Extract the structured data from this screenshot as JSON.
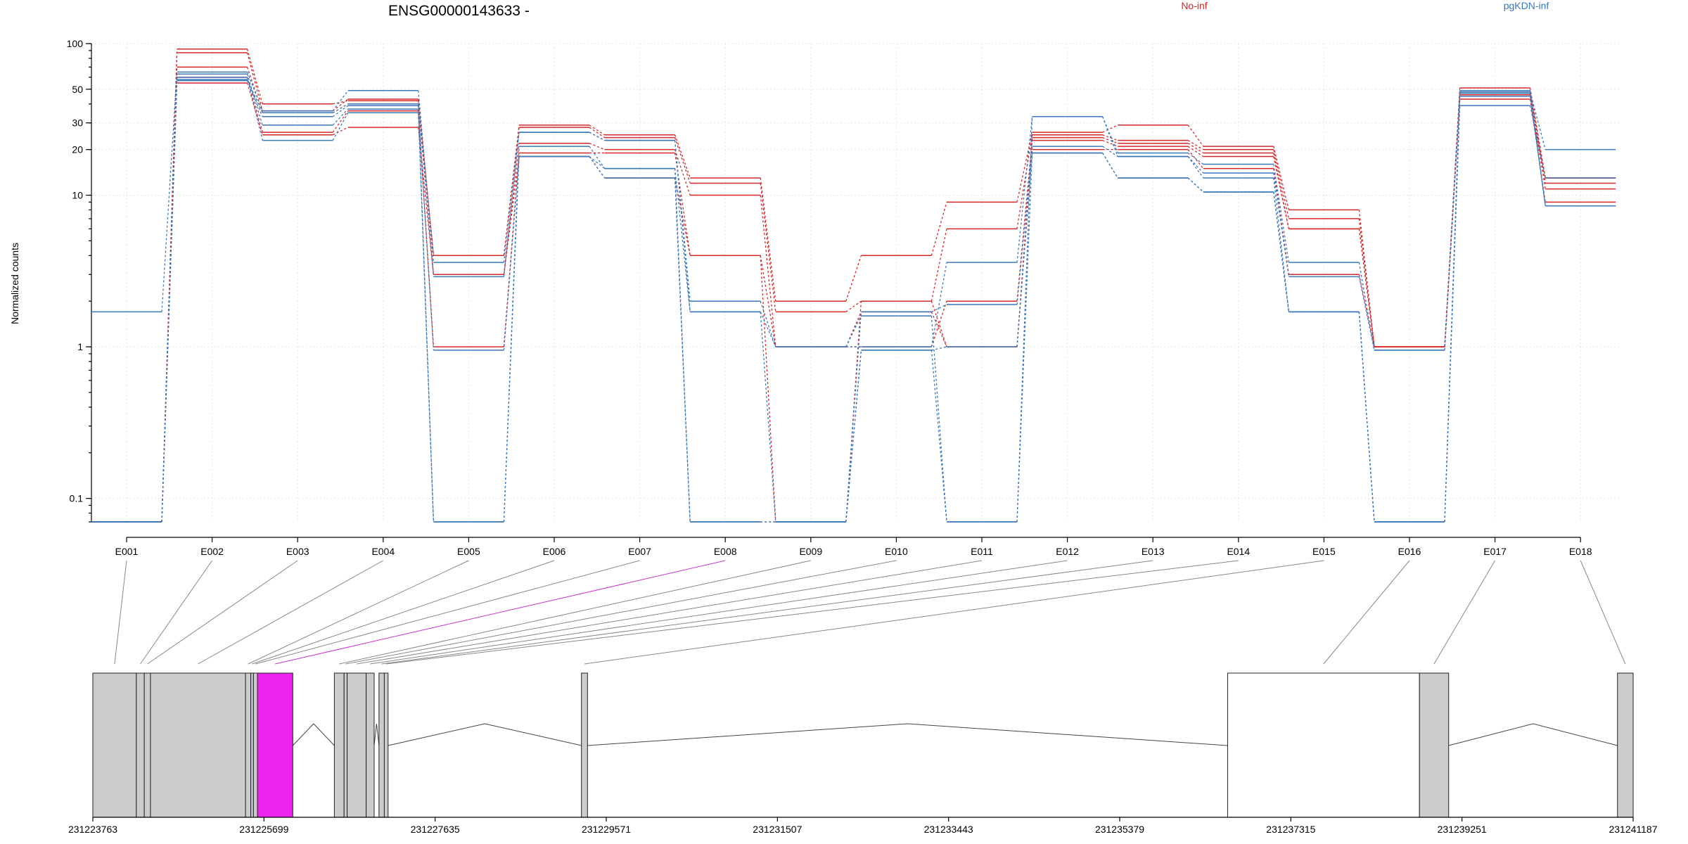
{
  "chart_data": {
    "type": "line",
    "title": "ENSG00000143633 -",
    "xlabel": "",
    "ylabel": "Normalized counts",
    "y_scale": "log",
    "ylim": [
      0.07,
      100
    ],
    "y_ticks": [
      {
        "value": 0.1,
        "label": "0.1"
      },
      {
        "value": 1,
        "label": "1"
      },
      {
        "value": 10,
        "label": "10"
      },
      {
        "value": 20,
        "label": "20"
      },
      {
        "value": 30,
        "label": "30"
      },
      {
        "value": 50,
        "label": "50"
      },
      {
        "value": 100,
        "label": "100"
      }
    ],
    "grid": true,
    "legend_position": "top",
    "categories": [
      "E001",
      "E002",
      "E003",
      "E004",
      "E005",
      "E006",
      "E007",
      "E008",
      "E009",
      "E010",
      "E011",
      "E012",
      "E013",
      "E014",
      "E015",
      "E016",
      "E017",
      "E018"
    ],
    "highlight_category": "E008",
    "colors": {
      "No-inf": "#d62728",
      "pgKDN-inf": "#3a78b8",
      "highlight": "#ee22ee",
      "exon_fill": "#cccccc"
    },
    "series": [
      {
        "name": "No-inf",
        "color": "#d62728",
        "values": [
          0.07,
          92,
          40,
          42,
          4.0,
          29,
          25,
          13,
          2.0,
          4.0,
          9.0,
          26,
          29,
          21,
          8.0,
          1.0,
          51,
          13
        ]
      },
      {
        "name": "No-inf",
        "color": "#d62728",
        "values": [
          0.07,
          87,
          36,
          43,
          4.0,
          28,
          24,
          12,
          1.7,
          2.0,
          6.0,
          25,
          23,
          20,
          7.0,
          1.0,
          49,
          12
        ]
      },
      {
        "name": "No-inf",
        "color": "#d62728",
        "values": [
          0.07,
          70,
          35,
          40,
          3.0,
          22,
          20,
          10,
          1.0,
          1.7,
          1.0,
          24,
          22,
          19,
          6.0,
          1.0,
          46,
          11
        ]
      },
      {
        "name": "No-inf",
        "color": "#d62728",
        "values": [
          0.07,
          60,
          26,
          36,
          1.0,
          19,
          19,
          4.0,
          1.0,
          1.0,
          2.0,
          23,
          21,
          18,
          6.0,
          1.0,
          43,
          9
        ]
      },
      {
        "name": "No-inf",
        "color": "#d62728",
        "values": [
          0.07,
          55,
          25,
          28,
          3.0,
          18,
          13,
          4.0,
          0.07,
          2.0,
          1.0,
          20,
          20,
          15,
          3.0,
          1.0,
          48,
          13
        ]
      },
      {
        "name": "pgKDN-inf",
        "color": "#3a78b8",
        "values": [
          1.7,
          65,
          36,
          49,
          3.6,
          26,
          23,
          2.0,
          1.0,
          1.6,
          0.07,
          33,
          19,
          16,
          3.6,
          0.95,
          48,
          20
        ]
      },
      {
        "name": "pgKDN-inf",
        "color": "#3a78b8",
        "values": [
          0.07,
          58,
          35,
          40,
          2.9,
          26,
          23,
          1.7,
          1.0,
          1.0,
          3.6,
          33,
          18,
          14,
          2.9,
          0.95,
          45,
          8.5
        ]
      },
      {
        "name": "pgKDN-inf",
        "color": "#3a78b8",
        "values": [
          0.07,
          57,
          33,
          39,
          0.07,
          21,
          15,
          1.7,
          0.07,
          1.7,
          1.9,
          21,
          18,
          13,
          1.7,
          0.07,
          49,
          8.5
        ]
      },
      {
        "name": "pgKDN-inf",
        "color": "#3a78b8",
        "values": [
          0.07,
          63,
          29,
          37,
          0.95,
          18,
          15,
          0.07,
          0.07,
          0.95,
          1.0,
          19,
          13,
          10.5,
          1.7,
          0.07,
          47,
          8.5
        ]
      },
      {
        "name": "pgKDN-inf",
        "color": "#3a78b8",
        "values": [
          0.07,
          60,
          23,
          35,
          0.07,
          18,
          13,
          0.07,
          0.07,
          0.95,
          0.07,
          19,
          13,
          10.5,
          1.7,
          0.07,
          39,
          13
        ]
      }
    ],
    "genomic_axis": {
      "range": [
        231223763,
        231241187
      ],
      "tick_labels": [
        "231223763",
        "231225699",
        "231227635",
        "231229571",
        "231231507",
        "231233443",
        "231235379",
        "231237315",
        "231239251",
        "231241187"
      ]
    },
    "exons": [
      {
        "id": "E001",
        "start": 231223763,
        "end": 231224255
      },
      {
        "id": "E002",
        "start": 231224255,
        "end": 231224345
      },
      {
        "id": "E003",
        "start": 231224345,
        "end": 231224415
      },
      {
        "id": "E004",
        "start": 231224415,
        "end": 231225490
      },
      {
        "id": "E005",
        "start": 231225490,
        "end": 231225550
      },
      {
        "id": "E006",
        "start": 231225550,
        "end": 231225580
      },
      {
        "id": "E007",
        "start": 231225580,
        "end": 231225625
      },
      {
        "id": "E008",
        "start": 231225625,
        "end": 231226025
      },
      {
        "id": "E009",
        "start": 231226495,
        "end": 231226605
      },
      {
        "id": "E010",
        "start": 231226605,
        "end": 231226640
      },
      {
        "id": "E011",
        "start": 231226640,
        "end": 231226855
      },
      {
        "id": "E012",
        "start": 231226855,
        "end": 231226945
      },
      {
        "id": "E013",
        "start": 231227000,
        "end": 231227060
      },
      {
        "id": "E014",
        "start": 231227060,
        "end": 231227103
      },
      {
        "id": "E015",
        "start": 231229290,
        "end": 231229359
      },
      {
        "id": "E016",
        "start": 231236600,
        "end": 231238770
      },
      {
        "id": "E017",
        "start": 231238770,
        "end": 231239100
      },
      {
        "id": "E018",
        "start": 231241010,
        "end": 231241187
      }
    ]
  }
}
